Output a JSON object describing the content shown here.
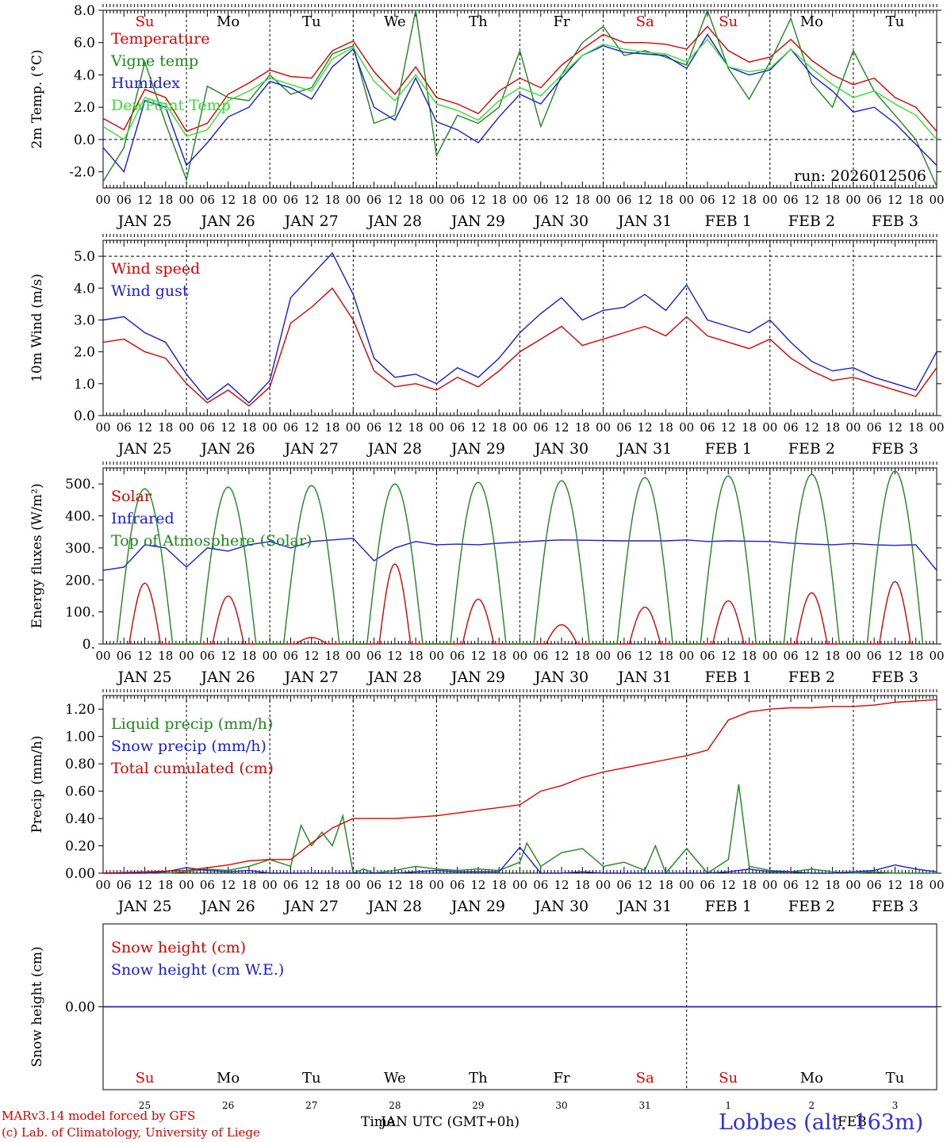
{
  "days_top": [
    "Su",
    "Mo",
    "Tu",
    "We",
    "Th",
    "Fr",
    "Sa",
    "Su",
    "Mo",
    "Tu"
  ],
  "day_colors": [
    "#e00000",
    "#000",
    "#000",
    "#000",
    "#000",
    "#000",
    "#e00000",
    "#e00000",
    "#000",
    "#000"
  ],
  "date_labels": [
    "JAN 25",
    "JAN 26",
    "JAN 27",
    "JAN 28",
    "JAN 29",
    "JAN 30",
    "JAN 31",
    "FEB  1",
    "FEB  2",
    "FEB  3"
  ],
  "hour_labels": [
    "00",
    "06",
    "12",
    "18"
  ],
  "hour_label_end": "00",
  "bottom_day_numbers": [
    "25",
    "26",
    "27",
    "28",
    "29",
    "30",
    "31",
    "1",
    "2",
    "3"
  ],
  "run_label": "run: 2026012506",
  "footer": {
    "model_line": "MARv3.14 model forced by GFS",
    "lab_line": "(c) Lab. of Climatology, University of Liege",
    "xlabel_a": "Time",
    "xlabel_b": "JAN UTC (GMT+0h)",
    "xlabel_c": "FEB",
    "station": "Lobbes (alt. 163m)"
  },
  "colors": {
    "red": "#e00000",
    "green": "#1a8a1a",
    "blue": "#1a1ae0",
    "lime": "#33e033"
  },
  "chart_data": [
    {
      "type": "line",
      "ylabel": "2m Temp. (°C)",
      "ylim": [
        -3,
        8
      ],
      "yticks": [
        -2,
        0,
        2,
        4,
        6,
        8
      ],
      "ytick_labels": [
        "-2.0",
        "0.0",
        "2.0",
        "4.0",
        "6.0",
        "8.0"
      ],
      "x_unit": "hours since 2026-01-25 00 UTC",
      "dashed_hline": 0,
      "series": [
        {
          "name": "Temperature",
          "color": "#e00000",
          "x": [
            0,
            6,
            12,
            18,
            24,
            30,
            36,
            42,
            48,
            54,
            60,
            66,
            72,
            78,
            84,
            90,
            96,
            102,
            108,
            114,
            120,
            126,
            132,
            138,
            144,
            150,
            156,
            162,
            168,
            174,
            180,
            186,
            192,
            198,
            204,
            210,
            216,
            222,
            228,
            234,
            240
          ],
          "values": [
            1.3,
            0.6,
            3.1,
            2.6,
            0.5,
            1.0,
            2.8,
            3.5,
            4.3,
            3.9,
            3.8,
            5.5,
            6.1,
            4.2,
            2.8,
            4.5,
            2.6,
            2.2,
            1.6,
            3.0,
            3.8,
            3.2,
            4.6,
            5.6,
            6.5,
            6.0,
            6.0,
            5.9,
            5.6,
            7.0,
            5.5,
            4.8,
            5.1,
            6.2,
            4.9,
            4.0,
            3.4,
            3.8,
            2.6,
            2.0,
            0.5
          ]
        },
        {
          "name": "Vigne temp",
          "color": "#1a8a1a",
          "x": [
            0,
            6,
            12,
            18,
            24,
            30,
            36,
            42,
            48,
            54,
            60,
            66,
            72,
            78,
            84,
            90,
            96,
            102,
            108,
            114,
            120,
            126,
            132,
            138,
            144,
            150,
            156,
            162,
            168,
            174,
            180,
            186,
            192,
            198,
            204,
            210,
            216,
            222,
            228,
            234,
            240
          ],
          "values": [
            -2.6,
            -0.5,
            4.8,
            1.0,
            -2.5,
            3.3,
            2.6,
            2.4,
            4.0,
            2.8,
            3.2,
            5.3,
            5.8,
            1.0,
            1.5,
            8.0,
            -1.0,
            1.5,
            1.0,
            2.0,
            5.5,
            0.8,
            4.0,
            6.0,
            7.0,
            5.2,
            5.5,
            5.1,
            4.6,
            8.0,
            4.4,
            2.5,
            4.8,
            7.5,
            3.5,
            2.0,
            5.5,
            3.0,
            1.5,
            0.0,
            -2.9
          ]
        },
        {
          "name": "Humidex",
          "color": "#1a1ae0",
          "x": [
            0,
            6,
            12,
            18,
            24,
            30,
            36,
            42,
            48,
            54,
            60,
            66,
            72,
            78,
            84,
            90,
            96,
            102,
            108,
            114,
            120,
            126,
            132,
            138,
            144,
            150,
            156,
            162,
            168,
            174,
            180,
            186,
            192,
            198,
            204,
            210,
            216,
            222,
            228,
            234,
            240
          ],
          "values": [
            -0.5,
            -2.0,
            2.4,
            2.0,
            -1.6,
            -0.2,
            1.4,
            2.0,
            3.6,
            3.2,
            2.5,
            4.5,
            5.6,
            2.0,
            1.2,
            3.8,
            1.1,
            0.6,
            -0.2,
            1.4,
            2.8,
            2.2,
            3.8,
            5.2,
            5.8,
            5.4,
            5.3,
            5.2,
            4.4,
            6.5,
            4.5,
            4.0,
            4.3,
            5.6,
            4.0,
            3.0,
            1.7,
            2.0,
            1.0,
            -0.3,
            -1.6
          ]
        },
        {
          "name": "DewPoint Temp",
          "color": "#33e033",
          "x": [
            0,
            6,
            12,
            18,
            24,
            30,
            36,
            42,
            48,
            54,
            60,
            66,
            72,
            78,
            84,
            90,
            96,
            102,
            108,
            114,
            120,
            126,
            132,
            138,
            144,
            150,
            156,
            162,
            168,
            174,
            180,
            186,
            192,
            198,
            204,
            210,
            216,
            222,
            228,
            234,
            240
          ],
          "values": [
            0.8,
            0.0,
            2.6,
            2.2,
            0.2,
            0.6,
            2.4,
            3.0,
            3.8,
            3.4,
            3.0,
            5.0,
            5.7,
            3.6,
            2.4,
            4.0,
            2.2,
            1.8,
            1.2,
            2.4,
            3.2,
            2.7,
            4.0,
            5.2,
            5.9,
            5.6,
            5.4,
            5.3,
            4.8,
            6.2,
            4.5,
            4.2,
            4.4,
            5.6,
            4.4,
            3.4,
            2.6,
            3.0,
            2.2,
            1.5,
            0.0
          ]
        }
      ]
    },
    {
      "type": "line",
      "ylabel": "10m Wind (m/s)",
      "ylim": [
        0,
        5.5
      ],
      "yticks": [
        0,
        1,
        2,
        3,
        4,
        5
      ],
      "ytick_labels": [
        "0.0",
        "1.0",
        "2.0",
        "3.0",
        "4.0",
        "5.0"
      ],
      "dashed_hline": 5,
      "series": [
        {
          "name": "Wind speed",
          "color": "#e00000",
          "x": [
            0,
            6,
            12,
            18,
            24,
            30,
            36,
            42,
            48,
            54,
            60,
            66,
            72,
            78,
            84,
            90,
            96,
            102,
            108,
            114,
            120,
            126,
            132,
            138,
            144,
            150,
            156,
            162,
            168,
            174,
            180,
            186,
            192,
            198,
            204,
            210,
            216,
            222,
            228,
            234,
            240
          ],
          "values": [
            2.3,
            2.4,
            2.0,
            1.8,
            1.0,
            0.4,
            0.8,
            0.3,
            0.9,
            2.9,
            3.4,
            4.0,
            3.0,
            1.4,
            0.9,
            1.0,
            0.8,
            1.2,
            0.9,
            1.4,
            2.0,
            2.4,
            2.8,
            2.2,
            2.4,
            2.6,
            2.8,
            2.5,
            3.1,
            2.5,
            2.3,
            2.1,
            2.4,
            1.8,
            1.4,
            1.1,
            1.2,
            1.0,
            0.8,
            0.6,
            1.5
          ]
        },
        {
          "name": "Wind gust",
          "color": "#1a1ae0",
          "x": [
            0,
            6,
            12,
            18,
            24,
            30,
            36,
            42,
            48,
            54,
            60,
            66,
            72,
            78,
            84,
            90,
            96,
            102,
            108,
            114,
            120,
            126,
            132,
            138,
            144,
            150,
            156,
            162,
            168,
            174,
            180,
            186,
            192,
            198,
            204,
            210,
            216,
            222,
            228,
            234,
            240
          ],
          "values": [
            3.0,
            3.1,
            2.6,
            2.3,
            1.3,
            0.5,
            1.0,
            0.4,
            1.1,
            3.7,
            4.4,
            5.1,
            3.8,
            1.8,
            1.2,
            1.3,
            1.0,
            1.5,
            1.2,
            1.8,
            2.6,
            3.2,
            3.7,
            3.0,
            3.3,
            3.4,
            3.8,
            3.3,
            4.1,
            3.0,
            2.8,
            2.6,
            3.0,
            2.3,
            1.7,
            1.4,
            1.5,
            1.2,
            1.0,
            0.8,
            2.0
          ]
        }
      ]
    },
    {
      "type": "line",
      "ylabel": "Energy fluxes (W/m²)",
      "ylim": [
        0,
        550
      ],
      "yticks": [
        0,
        100,
        200,
        300,
        400,
        500
      ],
      "ytick_labels": [
        "0.",
        "100.",
        "200.",
        "300.",
        "400.",
        "500."
      ],
      "series": [
        {
          "name": "Solar",
          "color": "#e00000",
          "peaks": [
            190,
            150,
            20,
            250,
            140,
            60,
            115,
            135,
            160,
            195
          ]
        },
        {
          "name": "Infrared",
          "color": "#1a1ae0",
          "x": [
            0,
            6,
            12,
            18,
            24,
            30,
            36,
            42,
            48,
            54,
            60,
            66,
            72,
            78,
            84,
            90,
            96,
            102,
            108,
            114,
            120,
            126,
            132,
            138,
            144,
            150,
            156,
            162,
            168,
            174,
            180,
            186,
            192,
            198,
            204,
            210,
            216,
            222,
            228,
            234,
            240
          ],
          "values": [
            230,
            240,
            310,
            300,
            240,
            300,
            290,
            310,
            320,
            300,
            320,
            325,
            330,
            260,
            300,
            320,
            310,
            312,
            310,
            315,
            318,
            322,
            325,
            324,
            323,
            322,
            322,
            322,
            325,
            320,
            322,
            321,
            320,
            315,
            312,
            310,
            314,
            310,
            308,
            310,
            230
          ]
        },
        {
          "name": "Top of Atmosphere (Solar)",
          "color": "#1a8a1a",
          "peaks": [
            485,
            490,
            495,
            500,
            505,
            510,
            520,
            525,
            530,
            540
          ]
        }
      ]
    },
    {
      "type": "line",
      "ylabel": "Precip (mm/h)",
      "ylim": [
        0,
        1.3
      ],
      "yticks": [
        0,
        0.2,
        0.4,
        0.6,
        0.8,
        1.0,
        1.2
      ],
      "ytick_labels": [
        "0.00",
        "0.20",
        "0.40",
        "0.60",
        "0.80",
        "1.00",
        "1.20"
      ],
      "series": [
        {
          "name": "Liquid precip (mm/h)",
          "color": "#1a8a1a",
          "x": [
            0,
            6,
            12,
            18,
            24,
            30,
            36,
            42,
            48,
            54,
            57,
            60,
            63,
            66,
            69,
            72,
            75,
            78,
            84,
            90,
            96,
            102,
            108,
            114,
            120,
            122,
            126,
            132,
            138,
            144,
            150,
            156,
            159,
            162,
            168,
            174,
            180,
            183,
            186,
            192,
            198,
            204,
            210,
            216,
            222,
            228,
            234,
            240
          ],
          "values": [
            0,
            0,
            0.01,
            0,
            0.01,
            0.03,
            0.02,
            0.05,
            0.1,
            0.05,
            0.35,
            0.2,
            0.3,
            0.2,
            0.42,
            0,
            0.03,
            0,
            0.02,
            0.05,
            0.03,
            0.02,
            0.03,
            0.02,
            0.08,
            0.22,
            0.05,
            0.15,
            0.18,
            0.05,
            0.08,
            0.02,
            0.2,
            0,
            0.18,
            0,
            0.1,
            0.65,
            0.05,
            0.02,
            0.01,
            0.03,
            0.01,
            0,
            0.01,
            0,
            0,
            0
          ]
        },
        {
          "name": "Snow precip (mm/h)",
          "color": "#1a1ae0",
          "x": [
            0,
            6,
            12,
            18,
            24,
            30,
            36,
            42,
            48,
            54,
            60,
            66,
            72,
            78,
            84,
            90,
            96,
            102,
            108,
            114,
            120,
            126,
            132,
            138,
            144,
            150,
            156,
            162,
            168,
            174,
            180,
            186,
            192,
            198,
            204,
            210,
            216,
            222,
            228,
            234,
            240
          ],
          "values": [
            0,
            0,
            0,
            0.01,
            0.04,
            0.02,
            0.01,
            0.02,
            0,
            0,
            0,
            0,
            0,
            0,
            0,
            0.01,
            0.02,
            0.01,
            0.01,
            0.01,
            0.19,
            0,
            0,
            0.01,
            0,
            0,
            0,
            0,
            0,
            0,
            0.01,
            0.03,
            0.01,
            0.01,
            0,
            0,
            0.01,
            0.02,
            0.06,
            0.03,
            0.01
          ]
        },
        {
          "name": "Total cumulated (cm)",
          "color": "#e00000",
          "x": [
            0,
            12,
            24,
            30,
            36,
            42,
            48,
            54,
            60,
            66,
            72,
            78,
            84,
            90,
            96,
            102,
            108,
            114,
            120,
            126,
            132,
            138,
            144,
            150,
            156,
            162,
            168,
            174,
            180,
            186,
            192,
            198,
            204,
            210,
            216,
            222,
            228,
            234,
            240
          ],
          "values": [
            0,
            0.01,
            0.02,
            0.04,
            0.06,
            0.09,
            0.1,
            0.1,
            0.22,
            0.33,
            0.4,
            0.4,
            0.4,
            0.41,
            0.42,
            0.44,
            0.46,
            0.48,
            0.5,
            0.6,
            0.64,
            0.7,
            0.74,
            0.77,
            0.8,
            0.83,
            0.86,
            0.9,
            1.12,
            1.18,
            1.2,
            1.21,
            1.21,
            1.22,
            1.22,
            1.23,
            1.25,
            1.26,
            1.27
          ]
        }
      ]
    },
    {
      "type": "line",
      "ylabel": "Snow height (cm)",
      "ylim": [
        -1,
        1
      ],
      "yticks": [
        0
      ],
      "ytick_labels": [
        "0.00"
      ],
      "series": [
        {
          "name": "Snow height (cm)",
          "color": "#e00000",
          "x": [
            0,
            240
          ],
          "values": [
            0,
            0
          ]
        },
        {
          "name": "Snow height (cm W.E.)",
          "color": "#1a1ae0",
          "x": [
            0,
            240
          ],
          "values": [
            0,
            0
          ]
        }
      ]
    }
  ]
}
